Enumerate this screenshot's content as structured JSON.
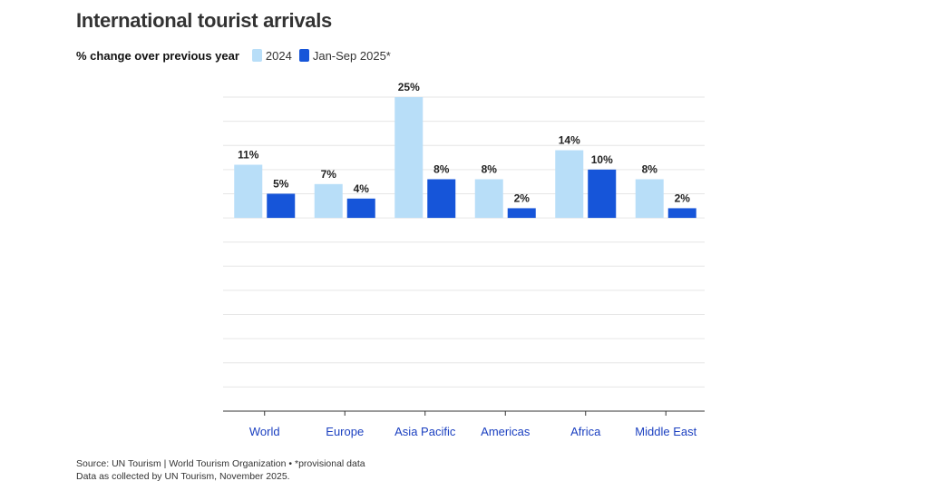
{
  "chart_data": {
    "type": "bar",
    "title": "International tourist arrivals",
    "subtitle": "% change over previous year",
    "categories": [
      "World",
      "Europe",
      "Asia Pacific",
      "Americas",
      "Africa",
      "Middle East"
    ],
    "series": [
      {
        "name": "2024",
        "color": "#b8def8",
        "values": [
          11,
          7,
          25,
          8,
          14,
          8
        ],
        "labels": [
          "11%",
          "7%",
          "25%",
          "8%",
          "14%",
          "8%"
        ]
      },
      {
        "name": "Jan-Sep 2025*",
        "color": "#1655d9",
        "values": [
          5,
          4,
          8,
          2,
          10,
          2
        ],
        "labels": [
          "5%",
          "4%",
          "8%",
          "2%",
          "10%",
          "2%"
        ]
      }
    ],
    "ylim": [
      -40,
      25
    ],
    "grid": true,
    "xlabel": "",
    "ylabel": "",
    "category_label_color": "#1a3fc0"
  },
  "footer": {
    "source": "Source: UN Tourism | World Tourism Organization • *provisional data",
    "note": "Data as collected by UN Tourism, November 2025."
  }
}
